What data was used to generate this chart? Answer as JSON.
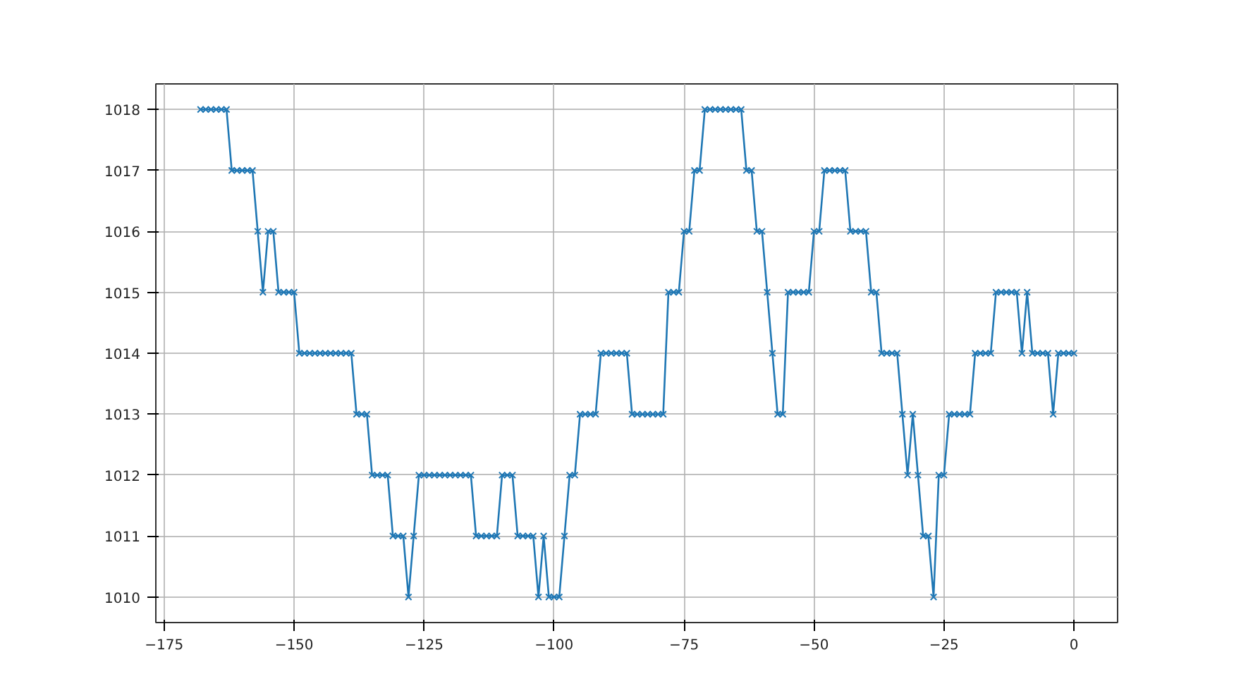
{
  "chart_data": {
    "type": "line",
    "x": [
      -168,
      -167,
      -166,
      -165,
      -164,
      -163,
      -162,
      -161,
      -160,
      -159,
      -158,
      -157,
      -156,
      -155,
      -154,
      -153,
      -152,
      -151,
      -150,
      -149,
      -148,
      -147,
      -146,
      -145,
      -144,
      -143,
      -142,
      -141,
      -140,
      -139,
      -138,
      -137,
      -136,
      -135,
      -134,
      -133,
      -132,
      -131,
      -130,
      -129,
      -128,
      -127,
      -126,
      -125,
      -124,
      -123,
      -122,
      -121,
      -120,
      -119,
      -118,
      -117,
      -116,
      -115,
      -114,
      -113,
      -112,
      -111,
      -110,
      -109,
      -108,
      -107,
      -106,
      -105,
      -104,
      -103,
      -102,
      -101,
      -100,
      -99,
      -98,
      -97,
      -96,
      -95,
      -94,
      -93,
      -92,
      -91,
      -90,
      -89,
      -88,
      -87,
      -86,
      -85,
      -84,
      -83,
      -82,
      -81,
      -80,
      -79,
      -78,
      -77,
      -76,
      -75,
      -74,
      -73,
      -72,
      -71,
      -70,
      -69,
      -68,
      -67,
      -66,
      -65,
      -64,
      -63,
      -62,
      -61,
      -60,
      -59,
      -58,
      -57,
      -56,
      -55,
      -54,
      -53,
      -52,
      -51,
      -50,
      -49,
      -48,
      -47,
      -46,
      -45,
      -44,
      -43,
      -42,
      -41,
      -40,
      -39,
      -38,
      -37,
      -36,
      -35,
      -34,
      -33,
      -32,
      -31,
      -30,
      -29,
      -28,
      -27,
      -26,
      -25,
      -24,
      -23,
      -22,
      -21,
      -20,
      -19,
      -18,
      -17,
      -16,
      -15,
      -14,
      -13,
      -12,
      -11,
      -10,
      -9,
      -8,
      -7,
      -6,
      -5,
      -4,
      -3,
      -2,
      -1,
      0
    ],
    "series": [
      {
        "color": "#1f77b4",
        "values": [
          1018,
          1018,
          1018,
          1018,
          1018,
          1018,
          1017,
          1017,
          1017,
          1017,
          1017,
          1016,
          1015,
          1016,
          1016,
          1015,
          1015,
          1015,
          1015,
          1014,
          1014,
          1014,
          1014,
          1014,
          1014,
          1014,
          1014,
          1014,
          1014,
          1014,
          1013,
          1013,
          1013,
          1012,
          1012,
          1012,
          1012,
          1011,
          1011,
          1011,
          1010,
          1011,
          1012,
          1012,
          1012,
          1012,
          1012,
          1012,
          1012,
          1012,
          1012,
          1012,
          1012,
          1011,
          1011,
          1011,
          1011,
          1011,
          1012,
          1012,
          1012,
          1011,
          1011,
          1011,
          1011,
          1010,
          1011,
          1010,
          1010,
          1010,
          1011,
          1012,
          1012,
          1013,
          1013,
          1013,
          1013,
          1014,
          1014,
          1014,
          1014,
          1014,
          1014,
          1013,
          1013,
          1013,
          1013,
          1013,
          1013,
          1013,
          1015,
          1015,
          1015,
          1016,
          1016,
          1017,
          1017,
          1018,
          1018,
          1018,
          1018,
          1018,
          1018,
          1018,
          1018,
          1017,
          1017,
          1016,
          1016,
          1015,
          1014,
          1013,
          1013,
          1015,
          1015,
          1015,
          1015,
          1015,
          1016,
          1016,
          1017,
          1017,
          1017,
          1017,
          1017,
          1016,
          1016,
          1016,
          1016,
          1015,
          1015,
          1014,
          1014,
          1014,
          1014,
          1013,
          1012,
          1013,
          1012,
          1011,
          1011,
          1010,
          1012,
          1012,
          1013,
          1013,
          1013,
          1013,
          1013,
          1014,
          1014,
          1014,
          1014,
          1015,
          1015,
          1015,
          1015,
          1015,
          1014,
          1015,
          1014,
          1014,
          1014,
          1014,
          1013,
          1014,
          1014,
          1014,
          1014
        ]
      }
    ],
    "xlim": [
      -176.6,
      8.4
    ],
    "ylim": [
      1009.58,
      1018.42
    ],
    "xticks": [
      -175,
      -150,
      -125,
      -100,
      -75,
      -50,
      -25,
      0
    ],
    "yticks": [
      1010,
      1011,
      1012,
      1013,
      1014,
      1015,
      1016,
      1017,
      1018
    ],
    "grid": true,
    "marker": "cross",
    "line_style": "solid"
  }
}
